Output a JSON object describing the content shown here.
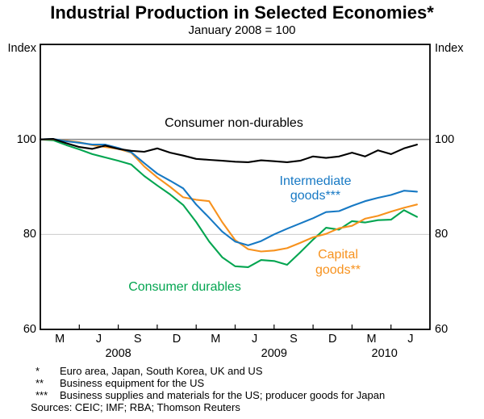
{
  "title": "Industrial Production in Selected Economies*",
  "subtitle": "January 2008 = 100",
  "axis": {
    "unit_label_left": "Index",
    "unit_label_right": "Index",
    "y_tick_labels": [
      100,
      80,
      60
    ],
    "x_quarter_letters": [
      "M",
      "J",
      "S",
      "D",
      "M",
      "J",
      "S",
      "D",
      "M",
      "J"
    ],
    "x_year_labels": [
      "2008",
      "2009",
      "2010"
    ]
  },
  "annotations": {
    "nondurables_label": "Consumer non-durables",
    "intermediate_label_line1": "Intermediate",
    "intermediate_label_line2": "goods***",
    "capital_label_line1": "Capital",
    "capital_label_line2": "goods**",
    "durables_label": "Consumer durables"
  },
  "chart_data": {
    "type": "line",
    "title": "Industrial Production in Selected Economies*",
    "subtitle": "January 2008 = 100",
    "x_unit": "month",
    "x_start": "2008-01",
    "x_end": "2010-06",
    "months_in_domain": 30,
    "ylim": [
      60,
      120
    ],
    "grid_values": [
      80
    ],
    "reference_line_value": 100,
    "grid_color": "#cccccc",
    "reference_line_color": "#8c8c8c",
    "frame_color": "#000000",
    "series": [
      {
        "name": "Consumer durables",
        "color": "#03a550",
        "values": [
          100,
          99.8,
          98.8,
          97.9,
          96.9,
          96.2,
          95.5,
          94.7,
          92.3,
          90.3,
          88.4,
          86.2,
          82.6,
          78.5,
          75.2,
          73.3,
          73.1,
          74.6,
          74.4,
          73.6,
          76.2,
          78.9,
          81.4,
          81.0,
          82.8,
          82.5,
          83.0,
          83.1,
          85.1,
          83.7
        ]
      },
      {
        "name": "Capital goods**",
        "color": "#f7921e",
        "values": [
          100,
          100.0,
          99.7,
          99.4,
          98.8,
          98.4,
          98.0,
          97.2,
          94.3,
          92.0,
          90.0,
          87.8,
          87.3,
          87.0,
          82.6,
          78.8,
          76.9,
          76.4,
          76.6,
          77.1,
          78.2,
          79.4,
          80.1,
          81.3,
          81.8,
          83.3,
          83.9,
          84.8,
          85.6,
          86.3
        ]
      },
      {
        "name": "Intermediate goods***",
        "color": "#1779c4",
        "values": [
          100,
          100.1,
          99.6,
          99.3,
          98.9,
          98.9,
          98.2,
          97.3,
          95.0,
          92.8,
          91.3,
          89.7,
          86.3,
          83.5,
          80.6,
          78.5,
          77.7,
          78.6,
          80.0,
          81.2,
          82.3,
          83.4,
          84.7,
          84.9,
          86.0,
          87.0,
          87.7,
          88.3,
          89.2,
          89.0
        ]
      },
      {
        "name": "Consumer non-durables",
        "color": "#000000",
        "values": [
          100,
          100.1,
          99.2,
          98.4,
          98.0,
          98.7,
          98.0,
          97.6,
          97.4,
          98.1,
          97.2,
          96.6,
          95.9,
          95.7,
          95.5,
          95.3,
          95.2,
          95.6,
          95.4,
          95.2,
          95.5,
          96.4,
          96.1,
          96.4,
          97.2,
          96.4,
          97.7,
          96.9,
          98.1,
          98.9
        ]
      }
    ]
  },
  "footnotes": [
    {
      "marker": "*",
      "text": "Euro area, Japan, South Korea, UK and US"
    },
    {
      "marker": "**",
      "text": "Business equipment for the US"
    },
    {
      "marker": "***",
      "text": "Business supplies and materials for the US; producer goods for Japan"
    }
  ],
  "sources": "Sources: CEIC; IMF; RBA; Thomson Reuters"
}
